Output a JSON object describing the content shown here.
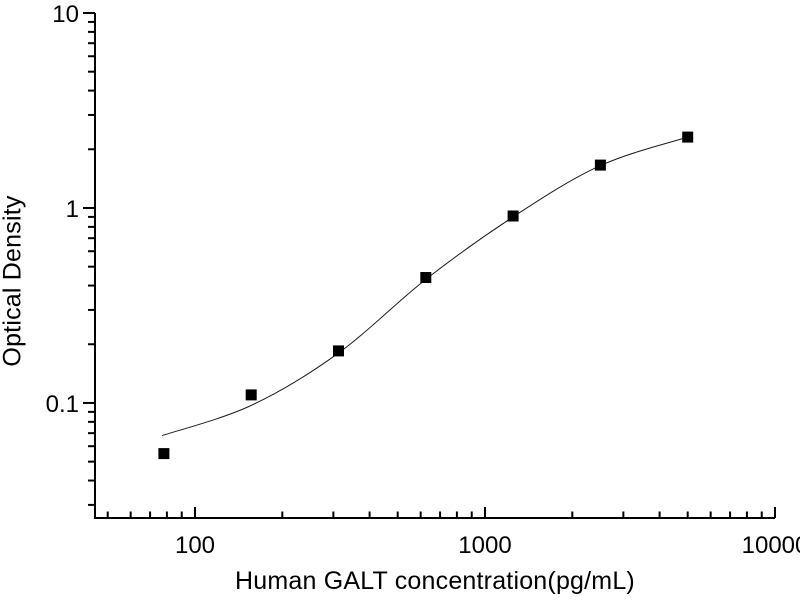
{
  "chart_data": {
    "type": "scatter",
    "title": "",
    "xlabel": "Human GALT concentration(pg/mL)",
    "ylabel": "Optical Density",
    "x_scale": "log",
    "y_scale": "log",
    "xlim": [
      45.2,
      10000
    ],
    "ylim": [
      0.0257,
      10
    ],
    "grid": false,
    "legend": "none",
    "x_ticks": {
      "values": [
        100,
        1000,
        10000
      ],
      "labels": [
        "100",
        "1000",
        "10000"
      ]
    },
    "y_ticks": {
      "values": [
        0.1,
        1,
        10
      ],
      "labels": [
        "0.1",
        "1",
        "10"
      ]
    },
    "series": [
      {
        "name": "standard-curve-points",
        "marker": "filled-square",
        "marker_size": 11,
        "x": [
          78.125,
          156.25,
          312.5,
          625,
          1250,
          2500,
          5000
        ],
        "y": [
          0.055,
          0.11,
          0.185,
          0.44,
          0.91,
          1.66,
          2.31
        ]
      }
    ],
    "fit_curve": {
      "name": "4pl-fit-line",
      "x": [
        77,
        156,
        312,
        625,
        1250,
        2500,
        5000
      ],
      "y": [
        0.068,
        0.097,
        0.18,
        0.43,
        0.9,
        1.65,
        2.31
      ]
    },
    "colors": {
      "axis": "#000000",
      "marker": "#000000",
      "curve": "#1c1c1c",
      "text": "#000000",
      "background": "#ffffff"
    }
  }
}
